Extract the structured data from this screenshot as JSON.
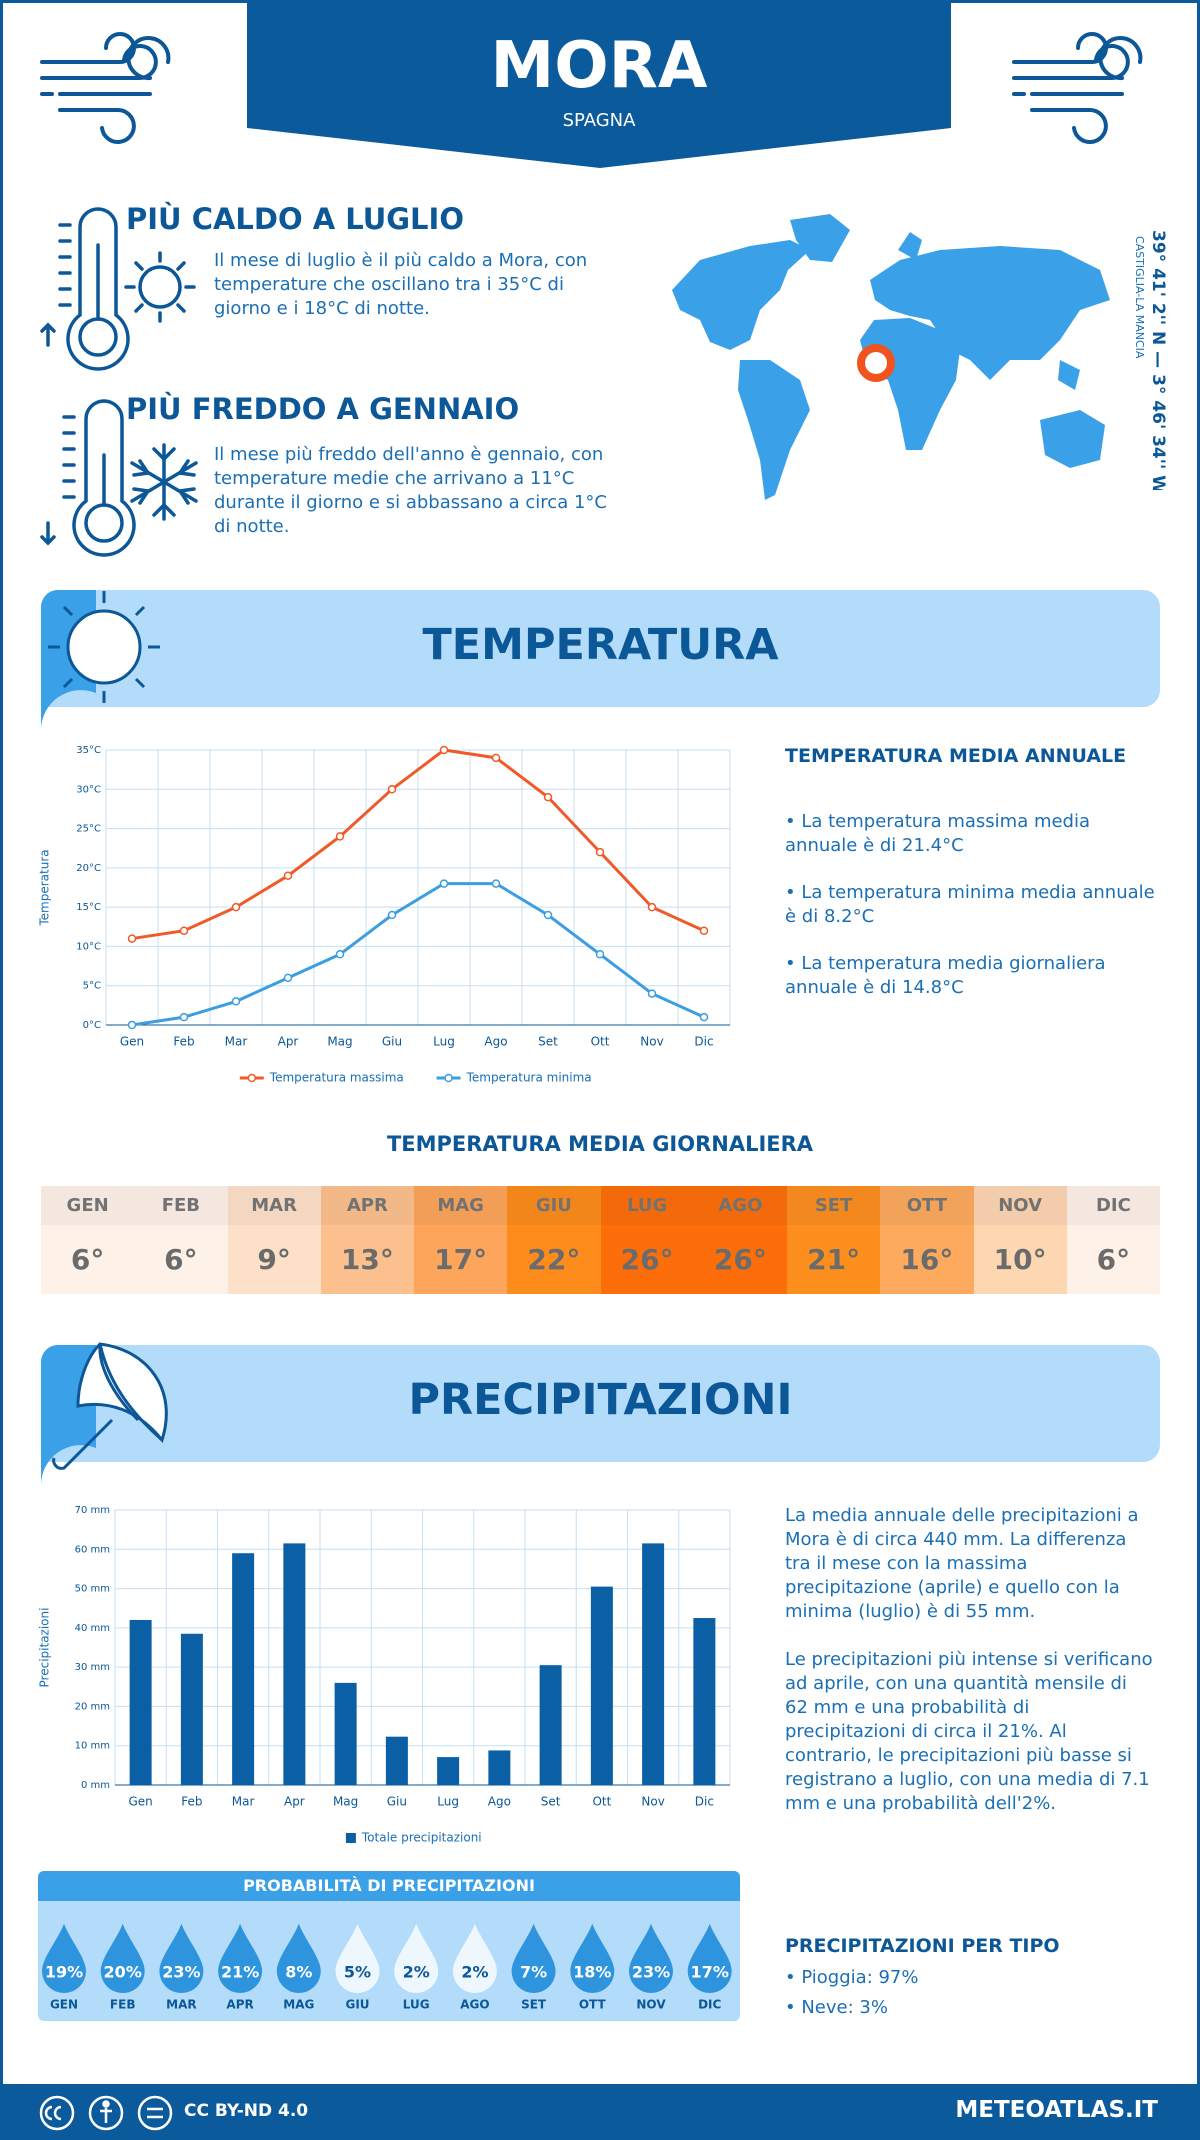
{
  "header": {
    "title": "MORA",
    "subtitle": "SPAGNA"
  },
  "highlights": [
    {
      "title": "PIÙ CALDO A LUGLIO",
      "text": "Il mese di luglio è il più caldo a Mora, con temperature che oscillano tra i 35°C di giorno e i 18°C di notte."
    },
    {
      "title": "PIÙ FREDDO A GENNAIO",
      "text": "Il mese più freddo dell'anno è gennaio, con temperature medie che arrivano a 11°C durante il giorno e si abbassano a circa 1°C di notte."
    }
  ],
  "location": {
    "coordinates": "39° 41' 2'' N — 3° 46' 34'' W",
    "region": "CASTIGLIA-LA MANCIA"
  },
  "sections": {
    "temperature": "TEMPERATURA",
    "precipitation": "PRECIPITAZIONI"
  },
  "chart_data": [
    {
      "type": "line",
      "y_label": "Temperatura",
      "categories": [
        "Gen",
        "Feb",
        "Mar",
        "Apr",
        "Mag",
        "Giu",
        "Lug",
        "Ago",
        "Set",
        "Ott",
        "Nov",
        "Dic"
      ],
      "series": [
        {
          "name": "Temperatura massima",
          "color": "#f05a28",
          "values": [
            11,
            12,
            15,
            19,
            24,
            30,
            35,
            34,
            29,
            22,
            15,
            12
          ]
        },
        {
          "name": "Temperatura minima",
          "color": "#3b9ee0",
          "values": [
            0,
            1,
            3,
            6,
            9,
            14,
            18,
            18,
            14,
            9,
            4,
            1
          ]
        }
      ],
      "ylim": [
        0,
        35
      ],
      "yticks": [
        {
          "value": 0,
          "label": "0°C"
        },
        {
          "value": 5,
          "label": "5°C"
        },
        {
          "value": 10,
          "label": "10°C"
        },
        {
          "value": 15,
          "label": "15°C"
        },
        {
          "value": 20,
          "label": "20°C"
        },
        {
          "value": 25,
          "label": "25°C"
        },
        {
          "value": 30,
          "label": "30°C"
        },
        {
          "value": 35,
          "label": "35°C"
        }
      ],
      "grid": true,
      "legend": "bottom"
    },
    {
      "type": "bar",
      "y_label": "Precipitazioni",
      "categories": [
        "Gen",
        "Feb",
        "Mar",
        "Apr",
        "Mag",
        "Giu",
        "Lug",
        "Ago",
        "Set",
        "Ott",
        "Nov",
        "Dic"
      ],
      "series": [
        {
          "name": "Totale precipitazioni",
          "color": "#0b5fa5",
          "values": [
            42,
            38.5,
            59,
            61.5,
            26,
            12.3,
            7.1,
            8.8,
            30.5,
            50.5,
            61.5,
            42.5
          ]
        }
      ],
      "ylim": [
        0,
        70
      ],
      "yticks": [
        {
          "value": 0,
          "label": "0 mm"
        },
        {
          "value": 10,
          "label": "10 mm"
        },
        {
          "value": 20,
          "label": "20 mm"
        },
        {
          "value": 30,
          "label": "30 mm"
        },
        {
          "value": 40,
          "label": "40 mm"
        },
        {
          "value": 50,
          "label": "50 mm"
        },
        {
          "value": 60,
          "label": "60 mm"
        },
        {
          "value": 70,
          "label": "70 mm"
        }
      ],
      "grid": true,
      "legend": "bottom"
    }
  ],
  "temperature_summary": {
    "title": "TEMPERATURA MEDIA ANNUALE",
    "items": [
      "• La temperatura massima media annuale è di 21.4°C",
      "• La temperatura minima media annuale è di 8.2°C",
      "• La temperatura media giornaliera annuale è di 14.8°C"
    ]
  },
  "daily_temperature": {
    "title": "TEMPERATURA MEDIA GIORNALIERA",
    "months": [
      "GEN",
      "FEB",
      "MAR",
      "APR",
      "MAG",
      "GIU",
      "LUG",
      "AGO",
      "SET",
      "OTT",
      "NOV",
      "DIC"
    ],
    "values": [
      6,
      6,
      9,
      13,
      17,
      22,
      26,
      26,
      21,
      16,
      10,
      6
    ],
    "value_labels": [
      "6°",
      "6°",
      "9°",
      "13°",
      "17°",
      "22°",
      "26°",
      "26°",
      "21°",
      "16°",
      "10°",
      "6°"
    ],
    "colors": [
      "#fef1e8",
      "#fef1e8",
      "#fde0c8",
      "#fcc08e",
      "#fda55a",
      "#fd8c1c",
      "#fc6e0a",
      "#fc6e0a",
      "#fd8f1f",
      "#fda95e",
      "#fdd6b2",
      "#fef1e8"
    ]
  },
  "precipitation_summary": {
    "paragraphs": [
      "La media annuale delle precipitazioni a Mora è di circa 440 mm. La differenza tra il mese con la massima precipitazione (aprile) e quello con la minima (luglio) è di 55 mm.",
      "Le precipitazioni più intense si verificano ad aprile, con una quantità mensile di 62 mm e una probabilità di precipitazioni di circa il 21%. Al contrario, le precipitazioni più basse si registrano a luglio, con una media di 7.1 mm e una probabilità dell'2%."
    ]
  },
  "precipitation_probability": {
    "title": "PROBABILITÀ DI PRECIPITAZIONI",
    "months": [
      "GEN",
      "FEB",
      "MAR",
      "APR",
      "MAG",
      "GIU",
      "LUG",
      "AGO",
      "SET",
      "OTT",
      "NOV",
      "DIC"
    ],
    "values": [
      19,
      20,
      23,
      21,
      8,
      5,
      2,
      2,
      7,
      18,
      23,
      17
    ],
    "value_labels": [
      "19%",
      "20%",
      "23%",
      "21%",
      "8%",
      "5%",
      "2%",
      "2%",
      "7%",
      "18%",
      "23%",
      "17%"
    ]
  },
  "precipitation_types": {
    "title": "PRECIPITAZIONI PER TIPO",
    "items": [
      "• Pioggia: 97%",
      "• Neve: 3%"
    ]
  },
  "footer": {
    "license": "CC BY-ND 4.0",
    "site": "METEOATLAS.IT"
  }
}
